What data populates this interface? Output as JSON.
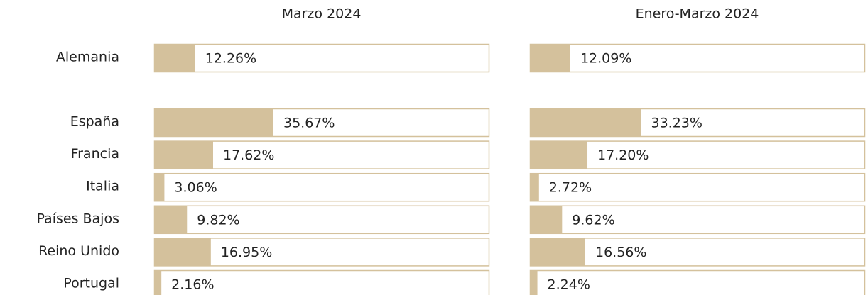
{
  "chart_data": {
    "type": "bar",
    "categories": [
      "Alemania",
      "España",
      "Francia",
      "Italia",
      "Países Bajos",
      "Reino Unido",
      "Portugal"
    ],
    "series": [
      {
        "name": "Marzo 2024",
        "color": "#d4c19c",
        "values": [
          12.26,
          35.67,
          17.62,
          3.06,
          9.82,
          16.95,
          2.16
        ],
        "value_labels": [
          "12.26%",
          "35.67%",
          "17.62%",
          "3.06%",
          "9.82%",
          "16.95%",
          "2.16%"
        ]
      },
      {
        "name": "Enero-Marzo 2024",
        "color": "#d4c19c",
        "values": [
          12.09,
          33.23,
          17.2,
          2.72,
          9.62,
          16.56,
          2.24
        ],
        "value_labels": [
          "12.09%",
          "33.23%",
          "17.20%",
          "2.72%",
          "9.62%",
          "16.56%",
          "2.24%"
        ]
      }
    ],
    "xlim": [
      0,
      100
    ]
  }
}
